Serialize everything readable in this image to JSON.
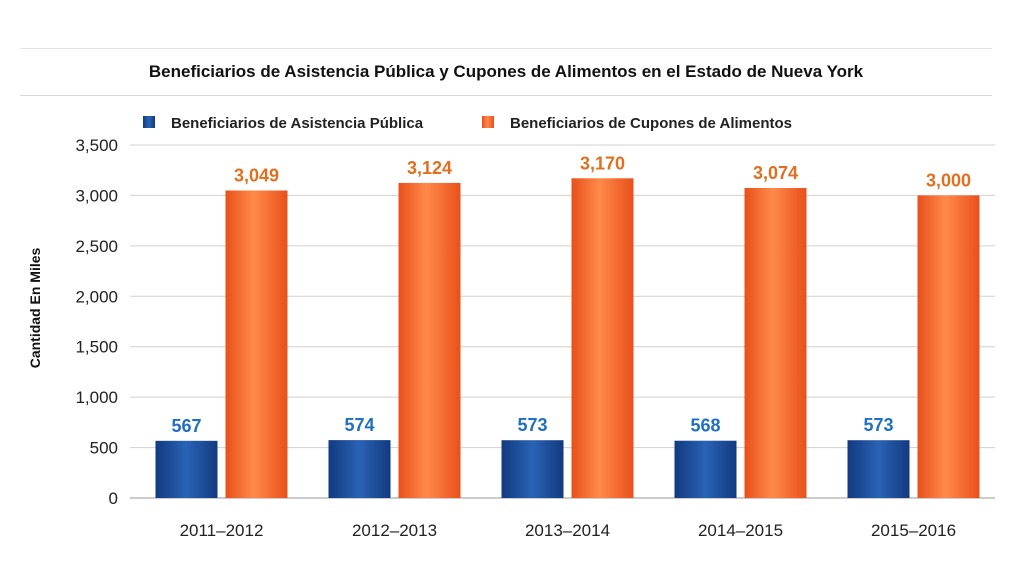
{
  "chart_data": {
    "type": "bar",
    "title": "Beneficiarios de Asistencia Pública y Cupones de Alimentos en el Estado de Nueva York",
    "xlabel": "",
    "ylabel": "Cantidad En Miles",
    "ylim": [
      0,
      3500
    ],
    "yticks": [
      0,
      500,
      1000,
      1500,
      2000,
      2500,
      3000,
      3500
    ],
    "ytick_labels": [
      "0",
      "500",
      "1,000",
      "1,500",
      "2,000",
      "2,500",
      "3,000",
      "3,500"
    ],
    "categories": [
      "2011–2012",
      "2012–2013",
      "2013–2014",
      "2014–2015",
      "2015–2016"
    ],
    "series": [
      {
        "name": "Beneficiarios de Asistencia Pública",
        "values": [
          567,
          574,
          573,
          568,
          573
        ],
        "labels": [
          "567",
          "574",
          "573",
          "568",
          "573"
        ],
        "color": "#1c4f9e",
        "label_color": "#1f6fc2"
      },
      {
        "name": "Beneficiarios de Cupones de Alimentos",
        "values": [
          3049,
          3124,
          3170,
          3074,
          3000
        ],
        "labels": [
          "3,049",
          "3,124",
          "3,170",
          "3,074",
          "3,000"
        ],
        "color": "#f25a1e",
        "label_color": "#e0701f"
      }
    ],
    "grid": true,
    "legend": "top-left"
  }
}
